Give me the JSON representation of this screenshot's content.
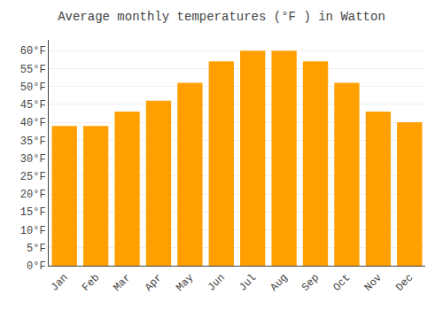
{
  "chart_data": {
    "type": "bar",
    "title": "Average monthly temperatures (°F ) in Watton",
    "categories": [
      "Jan",
      "Feb",
      "Mar",
      "Apr",
      "May",
      "Jun",
      "Jul",
      "Aug",
      "Sep",
      "Oct",
      "Nov",
      "Dec"
    ],
    "values": [
      39,
      39,
      43,
      46,
      51,
      57,
      60,
      60,
      57,
      51,
      43,
      40
    ],
    "color": "#FFA000",
    "ylim": [
      0,
      63
    ],
    "yticks": [
      {
        "value": 0,
        "label": "0°F"
      },
      {
        "value": 5,
        "label": "5°F"
      },
      {
        "value": 10,
        "label": "10°F"
      },
      {
        "value": 15,
        "label": "15°F"
      },
      {
        "value": 20,
        "label": "20°F"
      },
      {
        "value": 25,
        "label": "25°F"
      },
      {
        "value": 30,
        "label": "30°F"
      },
      {
        "value": 35,
        "label": "35°F"
      },
      {
        "value": 40,
        "label": "40°F"
      },
      {
        "value": 45,
        "label": "45°F"
      },
      {
        "value": 50,
        "label": "50°F"
      },
      {
        "value": 55,
        "label": "55°F"
      },
      {
        "value": 60,
        "label": "60°F"
      }
    ],
    "grid": true
  }
}
